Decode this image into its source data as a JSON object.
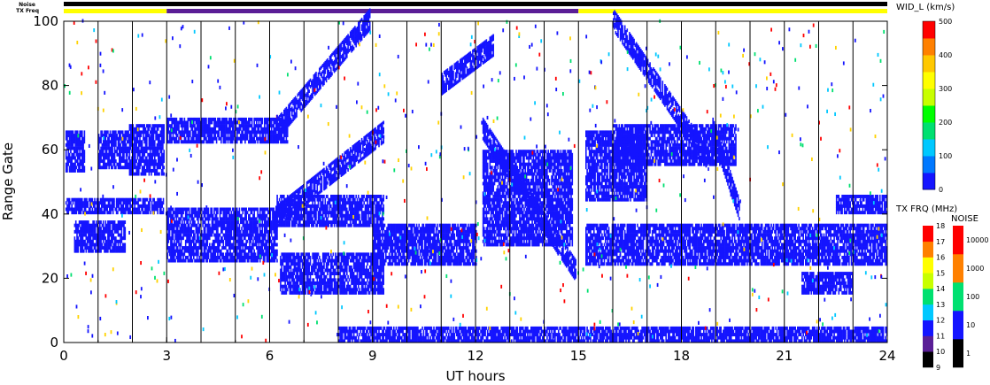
{
  "chart_data": {
    "type": "heatmap",
    "xlabel": "UT hours",
    "ylabel": "Range Gate",
    "xlim": [
      0,
      24
    ],
    "ylim": [
      0,
      100
    ],
    "x_ticks": [
      "0",
      "3",
      "6",
      "9",
      "12",
      "15",
      "18",
      "21",
      "24"
    ],
    "y_ticks": [
      "0",
      "20",
      "40",
      "60",
      "80",
      "100"
    ],
    "scan_line_hours": [
      1,
      2,
      3,
      4,
      5,
      6,
      7,
      8,
      9,
      10,
      11,
      12,
      13,
      14,
      15,
      16,
      17,
      18,
      19,
      20,
      21,
      22,
      23,
      24
    ],
    "series": [
      {
        "name": "WID_L",
        "unit": "km/s",
        "colorbar_ticks": [
          "0",
          "100",
          "200",
          "300",
          "400",
          "500"
        ]
      },
      {
        "name": "TX FRQ",
        "unit": "MHz",
        "colorbar_ticks": [
          "9",
          "10",
          "11",
          "12",
          "13",
          "14",
          "15",
          "16",
          "17",
          "18"
        ]
      },
      {
        "name": "NOISE",
        "colorbar_ticks": [
          "1",
          "10",
          "100",
          "1000",
          "10000"
        ]
      }
    ],
    "strip_labels": {
      "noise": "Noise",
      "tx_freq": "TX Freq"
    },
    "tx_freq_strip": [
      {
        "from": 0,
        "to": 3,
        "color": "#ffff00"
      },
      {
        "from": 3,
        "to": 15,
        "color": "#5a1e96"
      },
      {
        "from": 15,
        "to": 24,
        "color": "#ffff00"
      }
    ],
    "echo_bands": [
      {
        "x0": 0.05,
        "x1": 0.6,
        "y0": 53,
        "y1": 66
      },
      {
        "x0": 0.05,
        "x1": 2.9,
        "y0": 40,
        "y1": 45
      },
      {
        "x0": 0.3,
        "x1": 1.8,
        "y0": 28,
        "y1": 38
      },
      {
        "x0": 1.0,
        "x1": 1.9,
        "y0": 54,
        "y1": 66
      },
      {
        "x0": 1.9,
        "x1": 2.9,
        "y0": 52,
        "y1": 68
      },
      {
        "x0": 3.0,
        "x1": 6.2,
        "y0": 25,
        "y1": 42
      },
      {
        "x0": 3.0,
        "x1": 6.5,
        "y0": 62,
        "y1": 70
      },
      {
        "x0": 6.2,
        "x1": 9.3,
        "y0": 36,
        "y1": 46
      },
      {
        "x0": 6.3,
        "x1": 9.3,
        "y0": 15,
        "y1": 28
      },
      {
        "x0": 9.0,
        "x1": 12.0,
        "y0": 24,
        "y1": 37
      },
      {
        "x0": 12.2,
        "x1": 14.8,
        "y0": 30,
        "y1": 60
      },
      {
        "x0": 15.2,
        "x1": 24.0,
        "y0": 24,
        "y1": 37
      },
      {
        "x0": 16.0,
        "x1": 19.6,
        "y0": 55,
        "y1": 68
      },
      {
        "x0": 22.5,
        "x1": 24.0,
        "y0": 40,
        "y1": 46
      },
      {
        "x0": 21.5,
        "x1": 23.0,
        "y0": 15,
        "y1": 22
      },
      {
        "x0": 8.0,
        "x1": 24.0,
        "y0": 0,
        "y1": 5
      },
      {
        "x0": 15.2,
        "x1": 17.0,
        "y0": 44,
        "y1": 66
      }
    ],
    "echo_arcs": [
      {
        "x0": 6.2,
        "x1": 8.9,
        "y_start": 66,
        "y_end": 100
      },
      {
        "x0": 6.1,
        "x1": 9.3,
        "y_start": 38,
        "y_end": 65
      },
      {
        "x0": 12.2,
        "x1": 14.9,
        "y_start": 66,
        "y_end": 22
      },
      {
        "x0": 16.0,
        "x1": 18.8,
        "y_start": 100,
        "y_end": 56
      },
      {
        "x0": 18.9,
        "x1": 19.7,
        "y_start": 66,
        "y_end": 40
      },
      {
        "x0": 11.0,
        "x1": 12.5,
        "y_start": 80,
        "y_end": 92
      }
    ]
  },
  "colors": {
    "echo": "#1414ff",
    "scan_line": "#000000",
    "noise_strip": "#000000"
  }
}
